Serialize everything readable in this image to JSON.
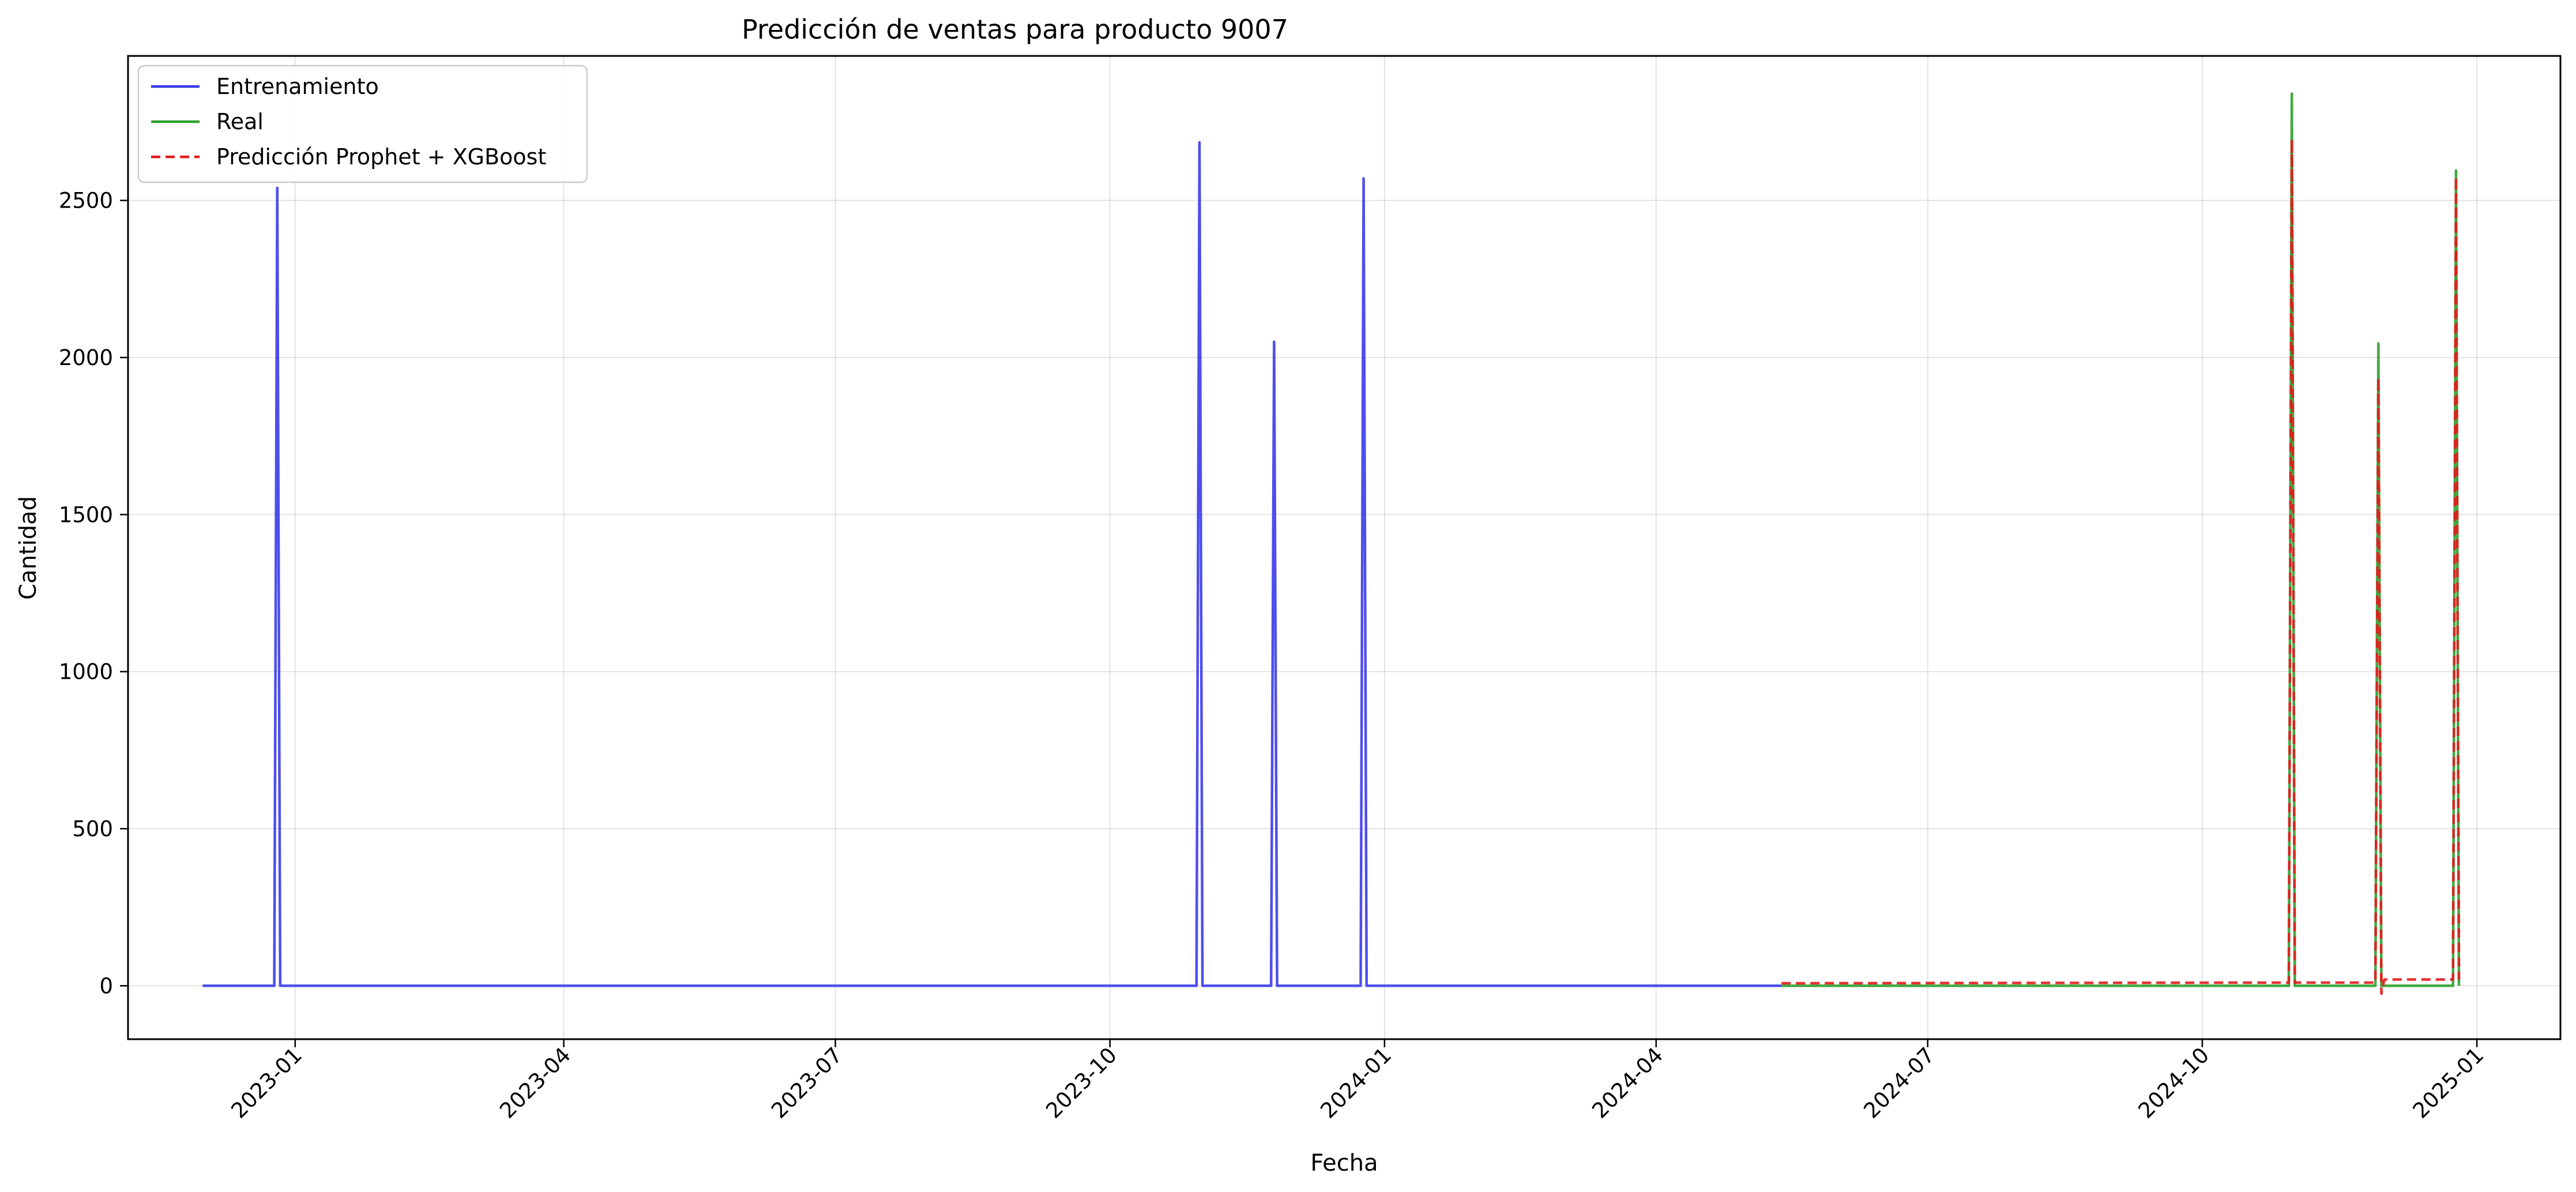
{
  "chart_data": {
    "type": "line",
    "title": "Predicción de ventas para producto 9007",
    "xlabel": "Fecha",
    "ylabel": "Cantidad",
    "xlim": [
      "2022-11-06",
      "2025-01-29"
    ],
    "ylim": [
      -170,
      2960
    ],
    "grid": true,
    "legend_position": "top-left",
    "x_ticks": [
      "2023-01",
      "2023-04",
      "2023-07",
      "2023-10",
      "2024-01",
      "2024-04",
      "2024-07",
      "2024-10",
      "2025-01"
    ],
    "y_ticks": [
      0,
      500,
      1000,
      1500,
      2000,
      2500
    ],
    "series": [
      {
        "name": "Entrenamiento",
        "color": "#3b3beb",
        "style": "solid",
        "points": [
          [
            "2022-12-01",
            0
          ],
          [
            "2022-12-25",
            0
          ],
          [
            "2022-12-26",
            2540
          ],
          [
            "2022-12-27",
            0
          ],
          [
            "2023-10-30",
            0
          ],
          [
            "2023-10-31",
            2685
          ],
          [
            "2023-11-01",
            0
          ],
          [
            "2023-11-24",
            0
          ],
          [
            "2023-11-25",
            2050
          ],
          [
            "2023-11-26",
            0
          ],
          [
            "2023-12-24",
            0
          ],
          [
            "2023-12-25",
            2570
          ],
          [
            "2023-12-26",
            0
          ],
          [
            "2024-05-13",
            0
          ]
        ]
      },
      {
        "name": "Real",
        "color": "#2ca02c",
        "style": "solid",
        "points": [
          [
            "2024-05-13",
            0
          ],
          [
            "2024-10-30",
            0
          ],
          [
            "2024-10-31",
            2840
          ],
          [
            "2024-11-01",
            0
          ],
          [
            "2024-11-28",
            0
          ],
          [
            "2024-11-29",
            2045
          ],
          [
            "2024-11-30",
            0
          ],
          [
            "2024-12-24",
            0
          ],
          [
            "2024-12-25",
            2595
          ],
          [
            "2024-12-26",
            0
          ]
        ]
      },
      {
        "name": "Predicción Prophet + XGBoost",
        "color": "#e31a1c",
        "style": "dashed",
        "points": [
          [
            "2024-05-13",
            8
          ],
          [
            "2024-10-30",
            10
          ],
          [
            "2024-10-31",
            2695
          ],
          [
            "2024-11-01",
            10
          ],
          [
            "2024-11-28",
            10
          ],
          [
            "2024-11-29",
            1935
          ],
          [
            "2024-11-30",
            -25
          ],
          [
            "2024-12-01",
            20
          ],
          [
            "2024-12-24",
            20
          ],
          [
            "2024-12-25",
            2575
          ],
          [
            "2024-12-26",
            20
          ]
        ]
      }
    ]
  }
}
